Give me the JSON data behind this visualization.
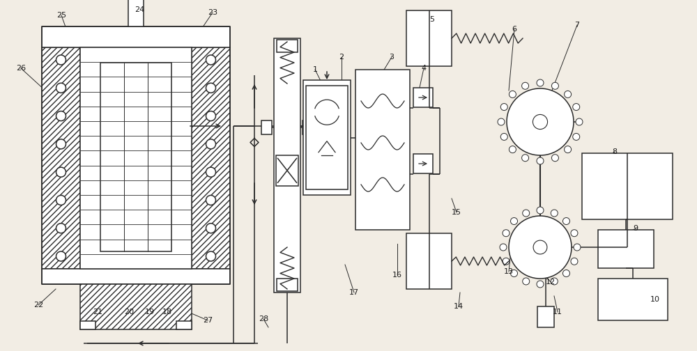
{
  "bg_color": "#f2ede4",
  "line_color": "#2a2a2a",
  "label_color": "#1a1a1a",
  "figw": 10.0,
  "figh": 5.04,
  "dpi": 100
}
